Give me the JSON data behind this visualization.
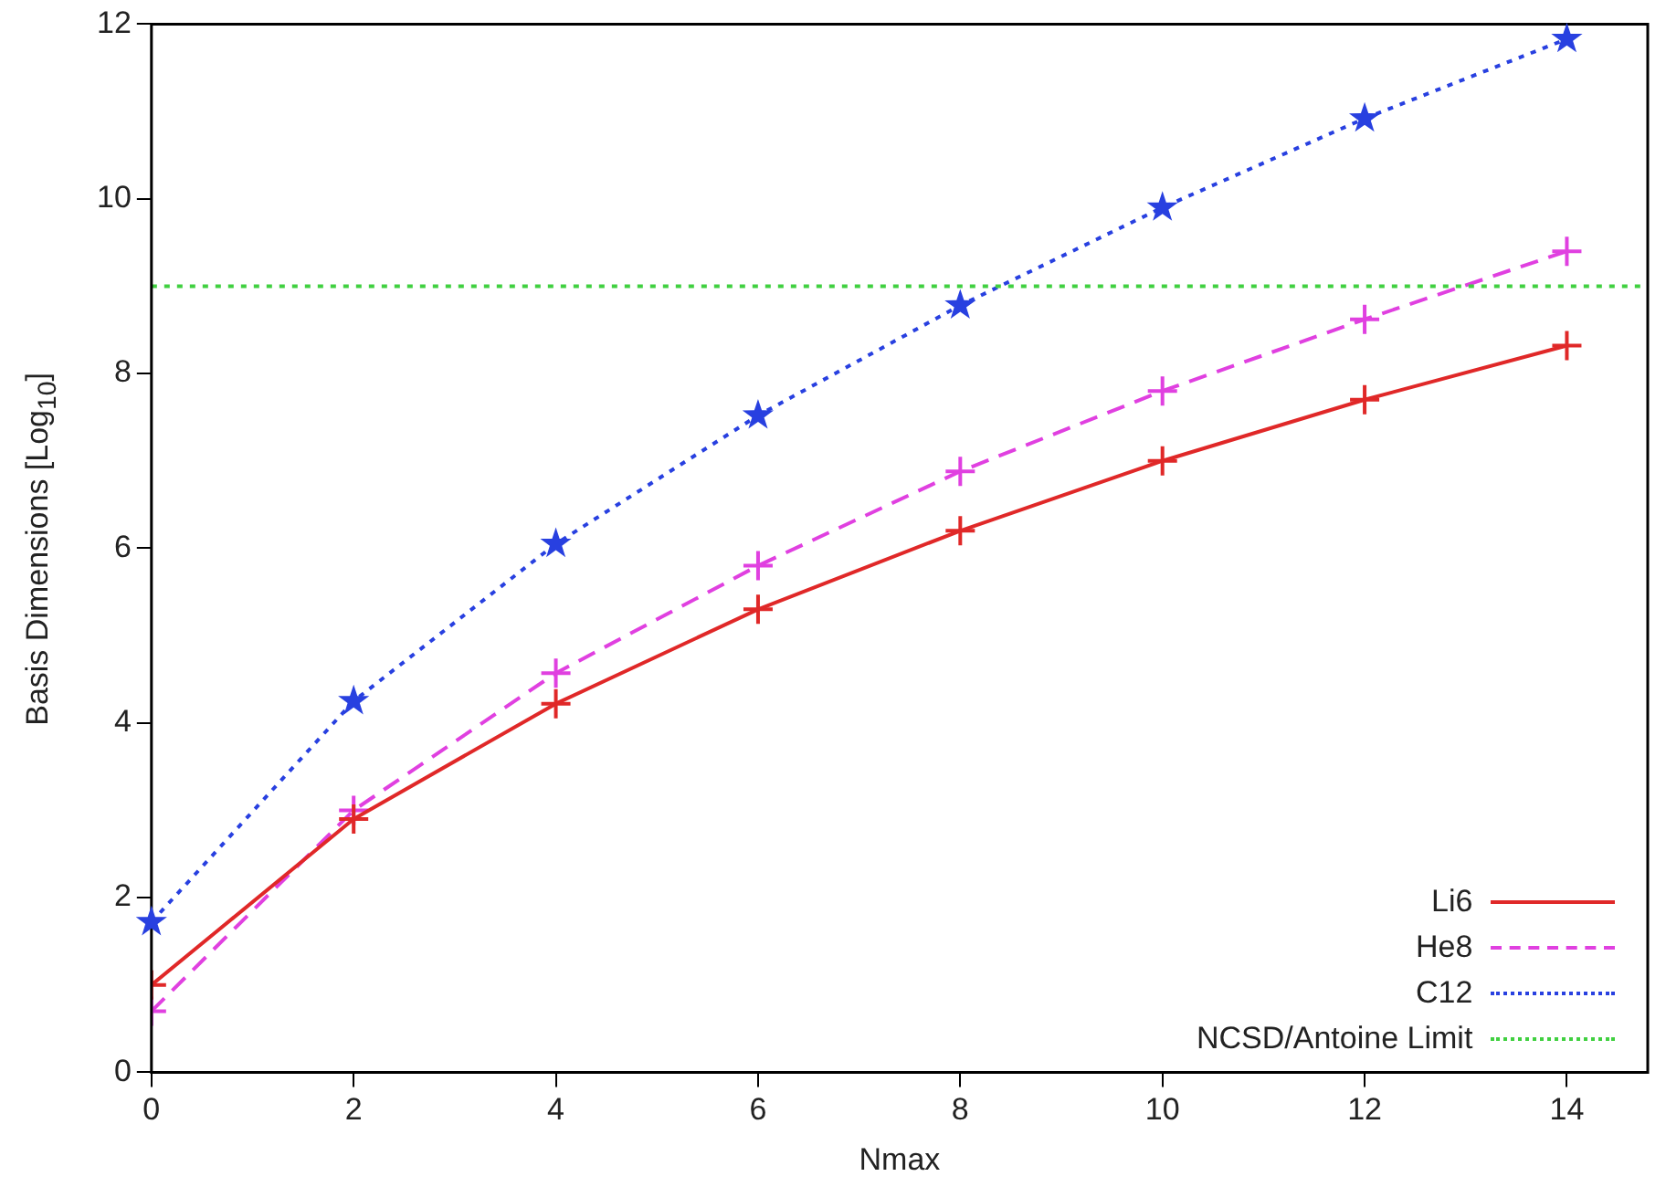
{
  "chart_data": {
    "type": "line",
    "xlabel": "Nmax",
    "ylabel": "Basis Dimensions [Log$_{10}$]",
    "x": [
      0,
      2,
      4,
      6,
      8,
      10,
      12,
      14
    ],
    "xlim": [
      0,
      14.8
    ],
    "xticks": [
      0,
      2,
      4,
      6,
      8,
      10,
      12,
      14
    ],
    "ylim": [
      0,
      12
    ],
    "yticks": [
      0,
      2,
      4,
      6,
      8,
      10,
      12
    ],
    "grid": false,
    "legend": "bottom right",
    "series": [
      {
        "name": "Li6",
        "color": "#e02828",
        "marker": "cross",
        "line_style": "solid",
        "values": [
          1.0,
          2.9,
          4.22,
          5.3,
          6.2,
          7.0,
          7.7,
          8.32
        ]
      },
      {
        "name": "He8",
        "color": "#e040e0",
        "marker": "cross",
        "line_style": "dashed",
        "values": [
          0.7,
          3.0,
          4.57,
          5.8,
          6.88,
          7.8,
          8.62,
          9.4
        ]
      },
      {
        "name": "C12",
        "color": "#2840e0",
        "marker": "star",
        "line_style": "dotted",
        "values": [
          1.72,
          4.25,
          6.05,
          7.52,
          8.78,
          9.9,
          10.92,
          11.83
        ]
      }
    ],
    "ref_lines": [
      {
        "axis": "y",
        "value": 9,
        "label": "NCSD/Antoine Limit",
        "color": "#40d040",
        "line_style": "dotted"
      }
    ]
  }
}
